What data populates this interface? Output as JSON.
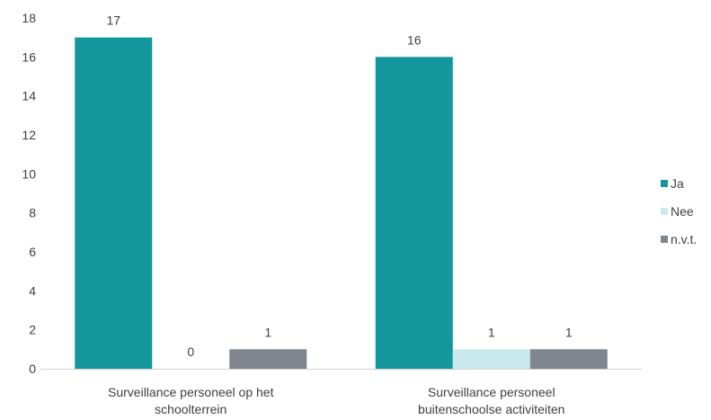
{
  "chart_data": {
    "type": "bar",
    "categories": [
      [
        "Surveillance personeel op het",
        "schoolterrein"
      ],
      [
        "Surveillance personeel",
        "buitenschoolse activiteiten"
      ]
    ],
    "series": [
      {
        "name": "Ja",
        "color": "#13969c",
        "values": [
          17,
          16
        ]
      },
      {
        "name": "Nee",
        "color": "#c9e9ec",
        "values": [
          0,
          1
        ]
      },
      {
        "name": "n.v.t.",
        "color": "#7f868f",
        "values": [
          1,
          1
        ]
      }
    ],
    "ylim": [
      0,
      18
    ],
    "yticks": [
      0,
      2,
      4,
      6,
      8,
      10,
      12,
      14,
      16,
      18
    ],
    "grid": false,
    "legend_position": "right",
    "data_labels": true
  }
}
